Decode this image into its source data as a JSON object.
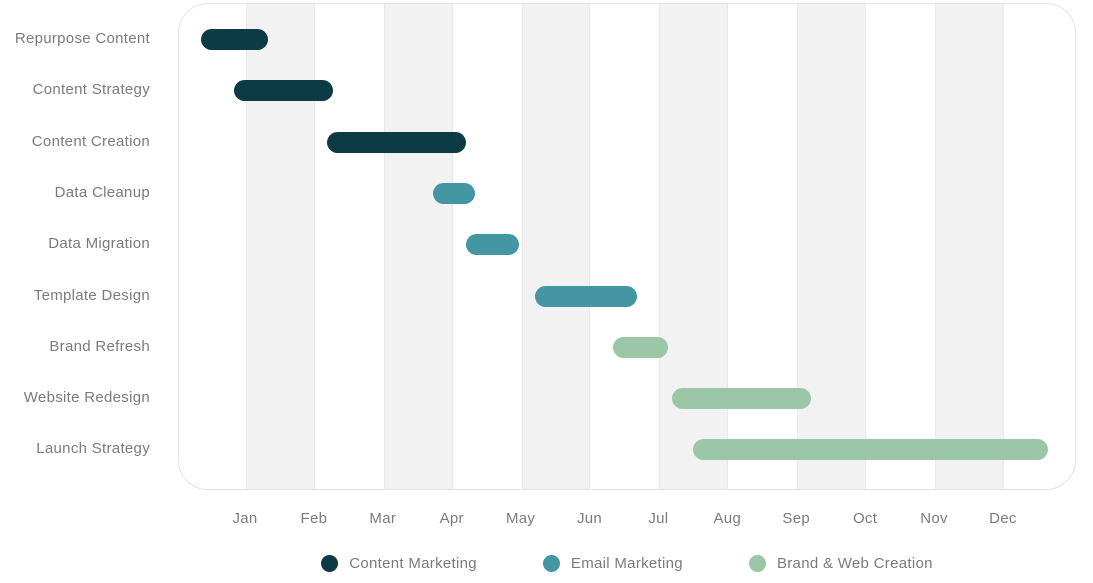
{
  "chart_data": {
    "type": "bar",
    "variant": "gantt",
    "title": "",
    "x_axis": {
      "tick_labels": [
        "Jan",
        "Feb",
        "Mar",
        "Apr",
        "May",
        "Jun",
        "Jul",
        "Aug",
        "Sep",
        "Oct",
        "Nov",
        "Dec"
      ],
      "unit": "months (0 = Jan tick)",
      "range_months": [
        -0.97,
        12.05
      ]
    },
    "grid": {
      "vertical_bands": "alternate month columns shaded, starting at Jan",
      "band_color": "#f2f2f2",
      "band_edge_color": "#e9e9e9"
    },
    "tasks": [
      {
        "name": "Repurpose Content",
        "group": "Content Marketing",
        "start_month": -0.65,
        "end_month": 0.32
      },
      {
        "name": "Content Strategy",
        "group": "Content Marketing",
        "start_month": -0.17,
        "end_month": 1.26
      },
      {
        "name": "Content Creation",
        "group": "Content Marketing",
        "start_month": 1.17,
        "end_month": 3.19
      },
      {
        "name": "Data Cleanup",
        "group": "Email Marketing",
        "start_month": 2.71,
        "end_month": 3.33
      },
      {
        "name": "Data Migration",
        "group": "Email Marketing",
        "start_month": 3.19,
        "end_month": 3.96
      },
      {
        "name": "Template Design",
        "group": "Email Marketing",
        "start_month": 4.2,
        "end_month": 5.68
      },
      {
        "name": "Brand Refresh",
        "group": "Brand & Web Creation",
        "start_month": 5.33,
        "end_month": 6.12
      },
      {
        "name": "Website Redesign",
        "group": "Brand & Web Creation",
        "start_month": 6.19,
        "end_month": 8.2
      },
      {
        "name": "Launch Strategy",
        "group": "Brand & Web Creation",
        "start_month": 6.49,
        "end_month": 11.64
      }
    ],
    "legend": {
      "position": "bottom-center",
      "items": [
        {
          "label": "Content Marketing",
          "color": "#0d3b45"
        },
        {
          "label": "Email Marketing",
          "color": "#4496a3"
        },
        {
          "label": "Brand & Web Creation",
          "color": "#9bc7a8"
        }
      ]
    }
  },
  "colors": {
    "background": "#ffffff",
    "plot_border": "#e3e3e3",
    "band_fill": "#f2f2f2",
    "band_edge": "#e9e9e9",
    "text": "#7b7b7b",
    "group_content_marketing": "#0d3b45",
    "group_email_marketing": "#4496a3",
    "group_brand_web_creation": "#9bc7a8"
  }
}
